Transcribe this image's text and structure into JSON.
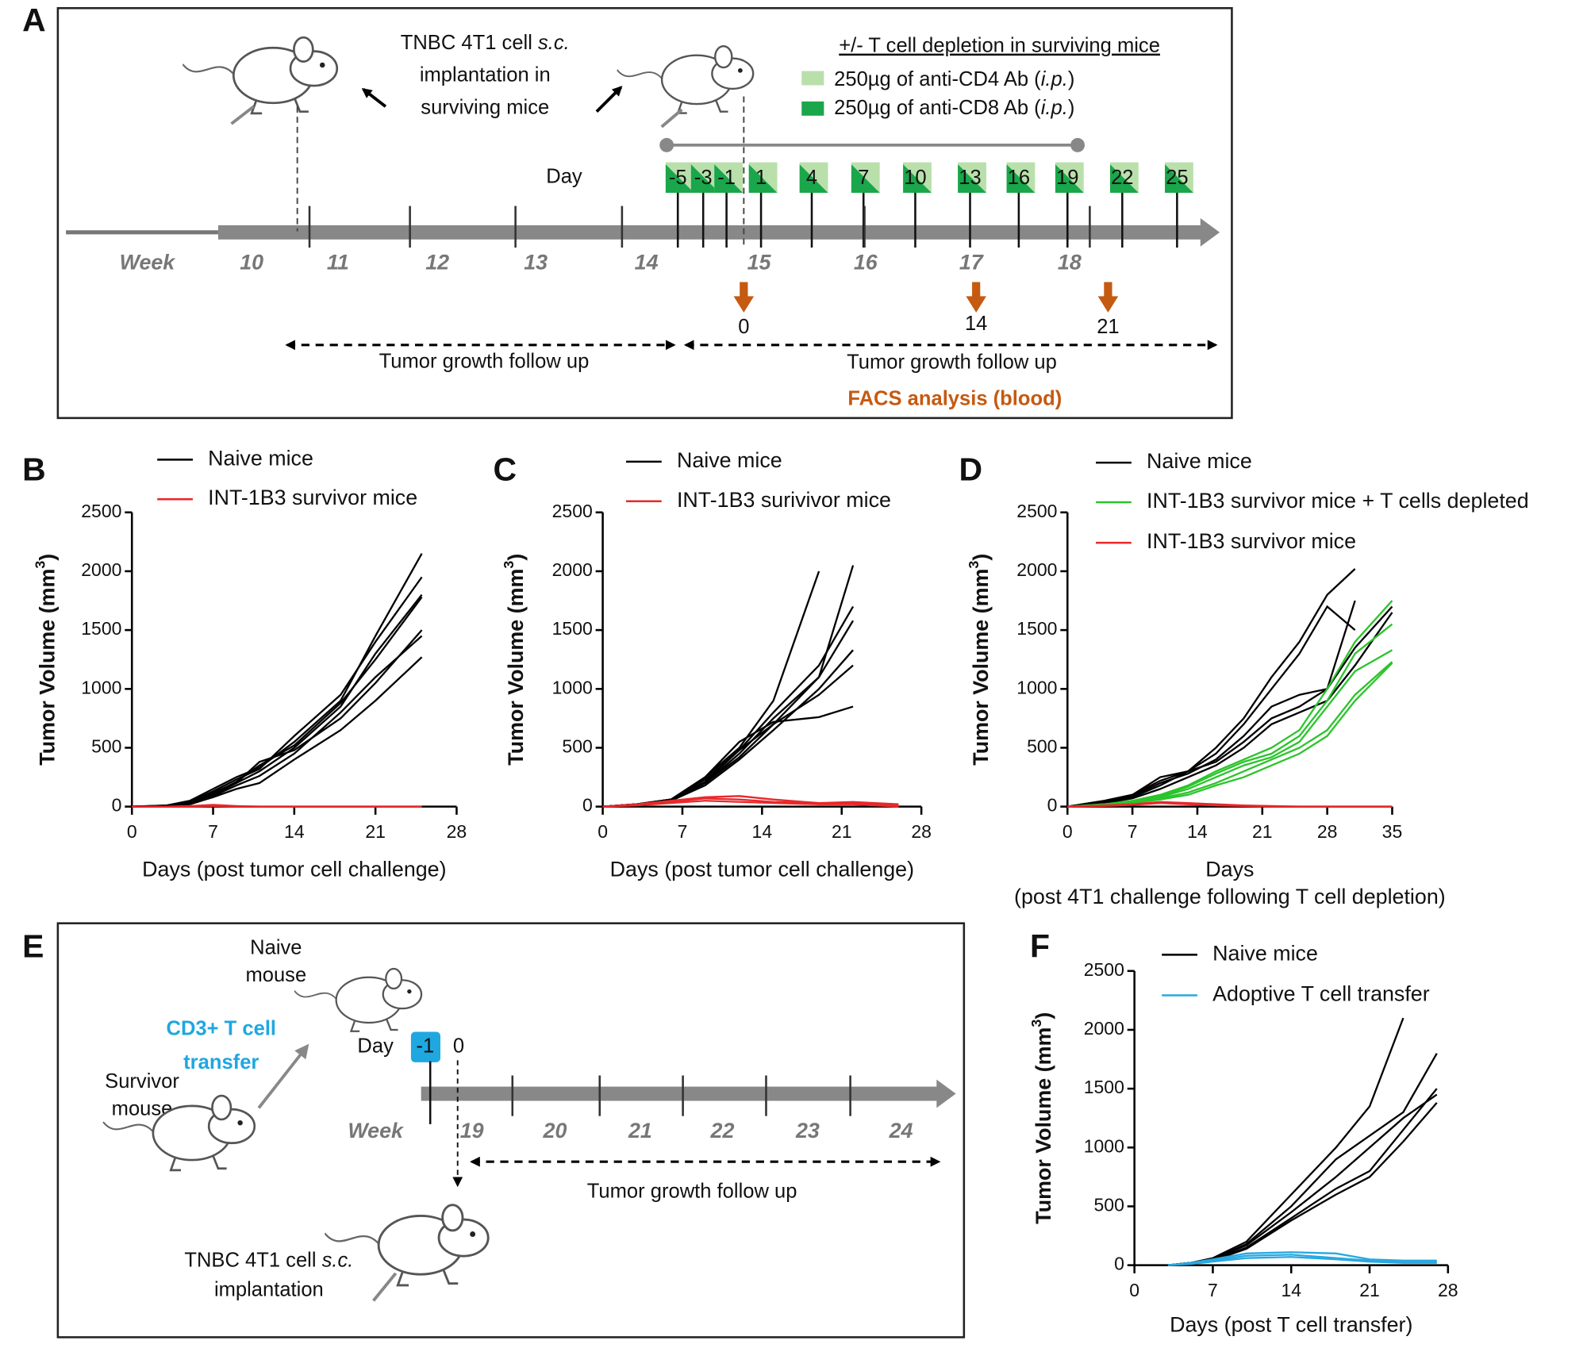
{
  "panel_a": {
    "label": "A",
    "implant_text": [
      "TNBC 4T1 cell ",
      "s.c.",
      "implantation in",
      "surviving mice"
    ],
    "legend_title": "+/- T cell depletion in surviving mice",
    "legend": [
      {
        "text": "250µg of anti-CD4 Ab (",
        "italic": "i.p.",
        "end": ")"
      },
      {
        "text": "250µg of anti-CD8 Ab (",
        "italic": "i.p.",
        "end": ")"
      }
    ],
    "day_label": "Day",
    "days": [
      -5,
      -3,
      -1,
      1,
      4,
      7,
      10,
      13,
      16,
      19,
      22,
      25
    ],
    "week_label": "Week",
    "weeks": [
      10,
      11,
      12,
      13,
      14,
      15,
      16,
      17,
      18
    ],
    "facs_days": [
      0,
      14,
      21
    ],
    "follow_up": [
      "Tumor growth follow up",
      "Tumor growth follow up"
    ],
    "facs": "FACS analysis (blood)"
  },
  "panel_e": {
    "label": "E",
    "naive": [
      "Naive",
      "mouse"
    ],
    "transfer": [
      "CD3+ T cell",
      "transfer"
    ],
    "survivor": [
      "Survivor",
      "mouse"
    ],
    "day_label": "Day",
    "days": [
      -1,
      0
    ],
    "week_label": "Week",
    "weeks": [
      19,
      20,
      21,
      22,
      23,
      24
    ],
    "follow_up": "Tumor growth follow up",
    "implant": [
      "TNBC 4T1 cell ",
      "s.c.",
      "implantation"
    ]
  },
  "chart_data": [
    {
      "type": "line",
      "panel": "B",
      "x": [
        0,
        3,
        5,
        7,
        9,
        11,
        14,
        18,
        21,
        25
      ],
      "xlim": [
        0,
        28
      ],
      "xticks": [
        0,
        7,
        14,
        21,
        28
      ],
      "ylim": [
        0,
        2500
      ],
      "yticks": [
        0,
        500,
        1000,
        1500,
        2000,
        2500
      ],
      "y_label": [
        "Tumor Volume (mm",
        "3",
        ")"
      ],
      "x_label": [
        "Days (post tumor cell challenge)"
      ],
      "series": [
        {
          "name": "Naive mice",
          "color": "#000000",
          "lines": [
            [
              0,
              10,
              50,
              150,
              250,
              330,
              550,
              900,
              1450,
              2150
            ],
            [
              0,
              10,
              40,
              130,
              230,
              320,
              600,
              950,
              1400,
              1950
            ],
            [
              0,
              5,
              30,
              120,
              200,
              300,
              500,
              850,
              1300,
              1800
            ],
            [
              0,
              5,
              35,
              110,
              210,
              350,
              520,
              880,
              1250,
              1780
            ],
            [
              0,
              8,
              30,
              100,
              200,
              380,
              480,
              750,
              1050,
              1500
            ],
            [
              0,
              5,
              25,
              90,
              180,
              260,
              450,
              800,
              1100,
              1450
            ],
            [
              0,
              5,
              20,
              80,
              150,
              200,
              400,
              650,
              900,
              1270
            ]
          ]
        },
        {
          "name": "INT-1B3 survivor mice",
          "color": "#e8282b",
          "lines": [
            [
              0,
              0,
              5,
              15,
              5,
              0,
              0,
              0,
              0,
              0
            ],
            [
              0,
              0,
              0,
              5,
              0,
              0,
              0,
              0,
              0,
              0
            ]
          ]
        }
      ]
    },
    {
      "type": "line",
      "panel": "C",
      "x": [
        0,
        3,
        6,
        9,
        12,
        15,
        19,
        22,
        26
      ],
      "xlim": [
        0,
        28
      ],
      "xticks": [
        0,
        7,
        14,
        21,
        28
      ],
      "ylim": [
        0,
        2500
      ],
      "yticks": [
        0,
        500,
        1000,
        1500,
        2000,
        2500
      ],
      "y_label": [
        "Tumor Volume (mm",
        "3",
        ")"
      ],
      "x_label": [
        "Days (post tumor cell challenge)"
      ],
      "series": [
        {
          "name": "Naive mice",
          "color": "#000000",
          "lines": [
            [
              0,
              20,
              60,
              250,
              500,
              900,
              2000,
              null,
              null
            ],
            [
              0,
              20,
              60,
              200,
              450,
              750,
              1100,
              2050,
              null
            ],
            [
              0,
              20,
              60,
              230,
              480,
              800,
              1200,
              1700,
              null
            ],
            [
              0,
              20,
              50,
              200,
              420,
              700,
              1100,
              1580,
              null
            ],
            [
              0,
              20,
              50,
              180,
              400,
              650,
              1000,
              1330,
              null
            ],
            [
              0,
              20,
              55,
              210,
              480,
              700,
              950,
              1200,
              null
            ],
            [
              0,
              20,
              60,
              250,
              550,
              720,
              760,
              850,
              null
            ]
          ]
        },
        {
          "name": "INT-1B3 surivivor mice",
          "color": "#e8282b",
          "lines": [
            [
              0,
              20,
              50,
              80,
              90,
              60,
              30,
              40,
              20
            ],
            [
              0,
              15,
              40,
              70,
              60,
              40,
              30,
              30,
              10
            ],
            [
              0,
              10,
              30,
              50,
              40,
              30,
              20,
              20,
              0
            ]
          ]
        }
      ]
    },
    {
      "type": "line",
      "panel": "D",
      "x": [
        0,
        4,
        7,
        10,
        13,
        16,
        19,
        22,
        25,
        28,
        31,
        35
      ],
      "xlim": [
        0,
        35
      ],
      "xticks": [
        0,
        7,
        14,
        21,
        28,
        35
      ],
      "ylim": [
        0,
        2500
      ],
      "yticks": [
        0,
        500,
        1000,
        1500,
        2000,
        2500
      ],
      "y_label": [
        "Tumor Volume (mm",
        "3",
        ")"
      ],
      "x_label": [
        "Days",
        "(post 4T1 challenge following T cell depletion)"
      ],
      "series": [
        {
          "name": "Naive mice",
          "color": "#000000",
          "lines": [
            [
              0,
              50,
              100,
              250,
              300,
              500,
              750,
              1100,
              1400,
              1800,
              2020,
              null
            ],
            [
              0,
              50,
              100,
              220,
              300,
              450,
              700,
              1000,
              1300,
              1700,
              1500,
              null
            ],
            [
              0,
              40,
              90,
              200,
              280,
              400,
              600,
              850,
              950,
              1000,
              1750,
              null
            ],
            [
              0,
              40,
              80,
              180,
              300,
              380,
              550,
              750,
              850,
              1000,
              1350,
              1700
            ],
            [
              0,
              30,
              70,
              150,
              250,
              350,
              500,
              700,
              800,
              900,
              1200,
              1650
            ]
          ]
        },
        {
          "name": "INT-1B3 survivor mice + T cells depleted",
          "color": "#2bc42b",
          "lines": [
            [
              0,
              20,
              50,
              100,
              180,
              300,
              400,
              500,
              650,
              1000,
              1400,
              1750
            ],
            [
              0,
              20,
              40,
              90,
              170,
              280,
              380,
              450,
              600,
              900,
              1300,
              1550
            ],
            [
              0,
              15,
              40,
              80,
              150,
              250,
              350,
              420,
              550,
              850,
              1150,
              1330
            ],
            [
              0,
              15,
              30,
              70,
              120,
              200,
              300,
              400,
              500,
              650,
              950,
              1230
            ],
            [
              0,
              10,
              30,
              60,
              100,
              180,
              250,
              350,
              450,
              600,
              900,
              1220
            ]
          ]
        },
        {
          "name": "INT-1B3 survivor mice",
          "color": "#e8282b",
          "lines": [
            [
              0,
              10,
              20,
              40,
              30,
              20,
              10,
              5,
              0,
              0,
              0,
              0
            ],
            [
              0,
              5,
              15,
              30,
              20,
              10,
              5,
              0,
              0,
              0,
              0,
              0
            ]
          ]
        }
      ]
    },
    {
      "type": "line",
      "panel": "F",
      "x": [
        3,
        5,
        7,
        10,
        14,
        18,
        21,
        24,
        27
      ],
      "xlim": [
        0,
        28
      ],
      "xticks": [
        0,
        7,
        14,
        21,
        28
      ],
      "ylim": [
        0,
        2500
      ],
      "yticks": [
        0,
        500,
        1000,
        1500,
        2000,
        2500
      ],
      "y_label": [
        "Tumor Volume (mm",
        "3",
        ")"
      ],
      "x_label": [
        "Days (post T cell transfer)"
      ],
      "series": [
        {
          "name": "Naive mice",
          "color": "#000000",
          "lines": [
            [
              0,
              20,
              60,
              200,
              600,
              1000,
              1350,
              2100,
              null
            ],
            [
              0,
              20,
              50,
              180,
              500,
              900,
              1100,
              1300,
              1800
            ],
            [
              0,
              20,
              50,
              170,
              450,
              750,
              1000,
              1250,
              1450
            ],
            [
              0,
              15,
              40,
              150,
              400,
              650,
              800,
              1150,
              1500
            ],
            [
              0,
              15,
              40,
              140,
              380,
              600,
              750,
              1050,
              1380
            ]
          ]
        },
        {
          "name": "Adoptive T cell transfer",
          "color": "#29a8e0",
          "lines": [
            [
              0,
              20,
              50,
              100,
              110,
              100,
              50,
              40,
              40
            ],
            [
              0,
              15,
              40,
              80,
              90,
              60,
              40,
              30,
              30
            ],
            [
              0,
              10,
              30,
              60,
              70,
              50,
              30,
              20,
              20
            ]
          ]
        }
      ]
    }
  ]
}
